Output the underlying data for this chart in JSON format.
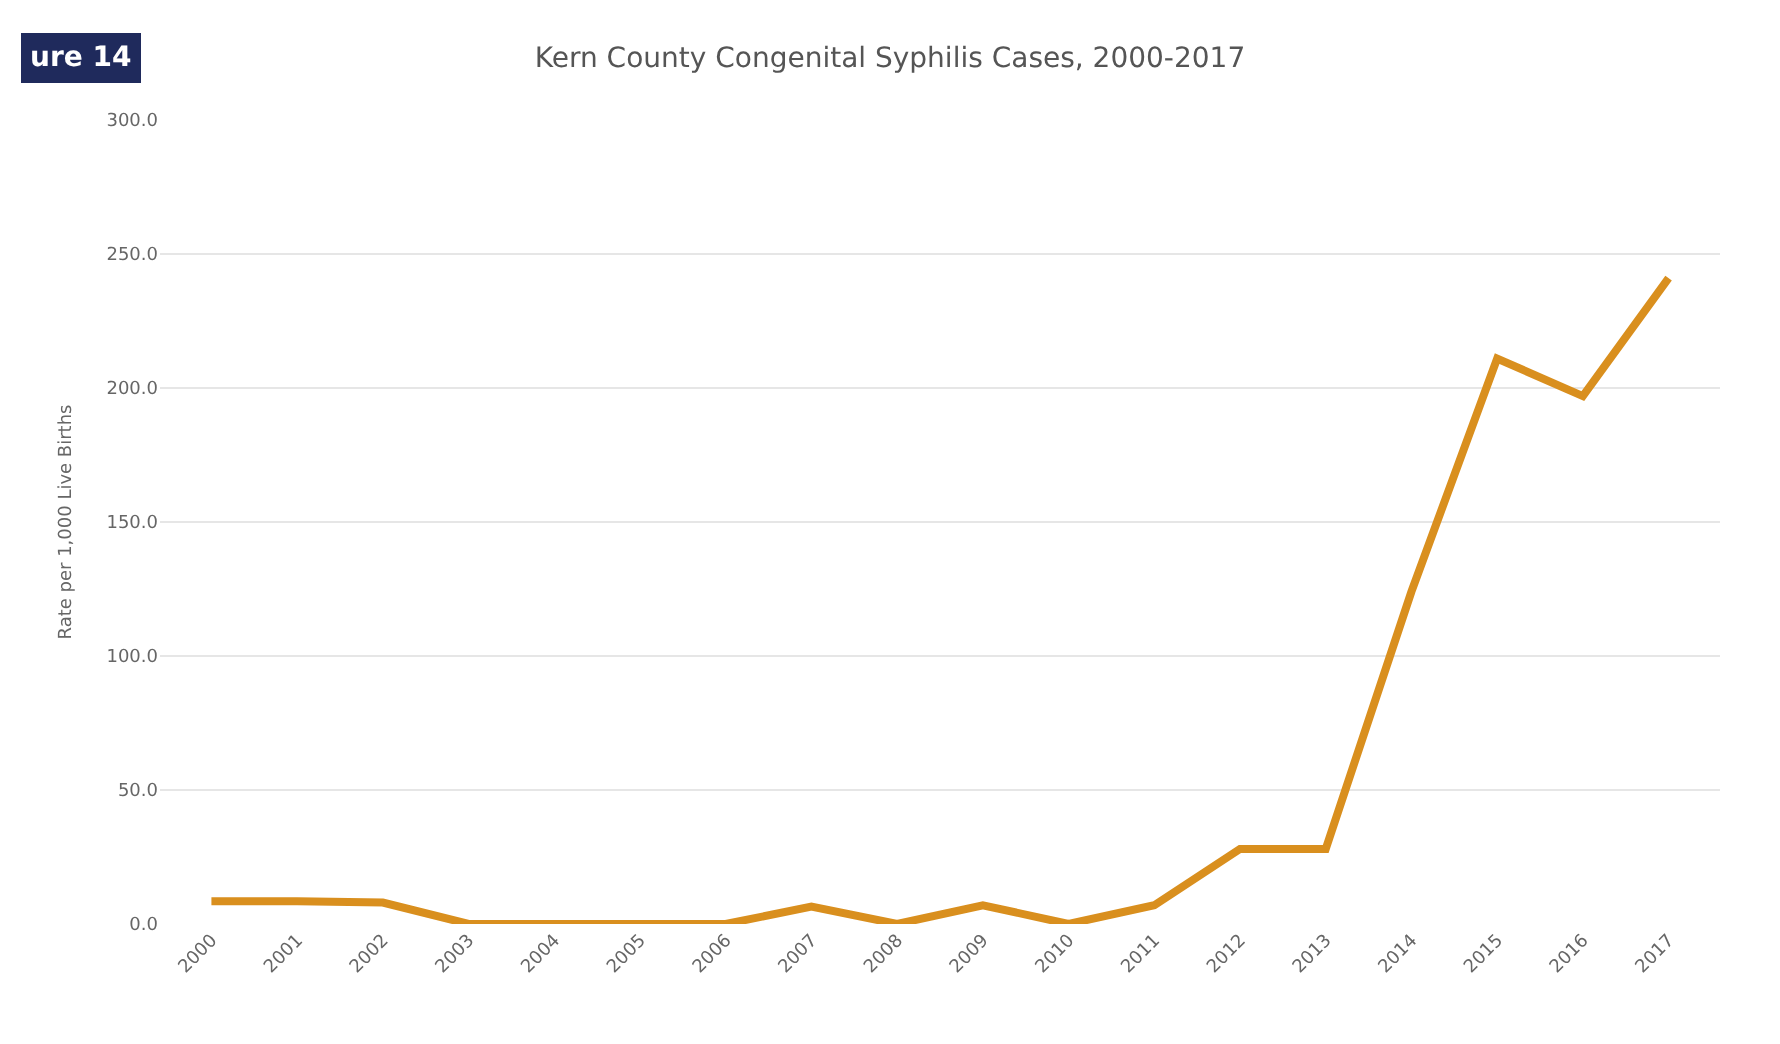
{
  "chart_data": {
    "type": "line",
    "title": "Kern County Congenital Syphilis Cases, 2000-2017",
    "ylabel": "Rate per 1,000 Live Births",
    "annotations": [
      "ure 14"
    ],
    "categories": [
      "2000",
      "2001",
      "2002",
      "2003",
      "2004",
      "2005",
      "2006",
      "2007",
      "2008",
      "2009",
      "2010",
      "2011",
      "2012",
      "2013",
      "2014",
      "2015",
      "2016",
      "2017"
    ],
    "series": [
      {
        "color": "#d98f1e",
        "values": [
          8.5,
          8.5,
          8,
          0,
          0,
          0,
          0,
          6.5,
          0,
          7,
          0,
          7,
          28,
          28,
          124,
          211,
          197,
          241
        ]
      }
    ],
    "ylim": [
      0,
      300
    ],
    "yticks": [
      {
        "value": 0,
        "label": "0.0"
      },
      {
        "value": 50,
        "label": "50.0"
      },
      {
        "value": 100,
        "label": "100.0"
      },
      {
        "value": 150,
        "label": "150.0"
      },
      {
        "value": 200,
        "label": "200.0"
      },
      {
        "value": 250,
        "label": "250.0"
      },
      {
        "value": 300,
        "label": "300.0"
      }
    ],
    "grid": "y",
    "marker": "none",
    "line_style": "solid"
  }
}
